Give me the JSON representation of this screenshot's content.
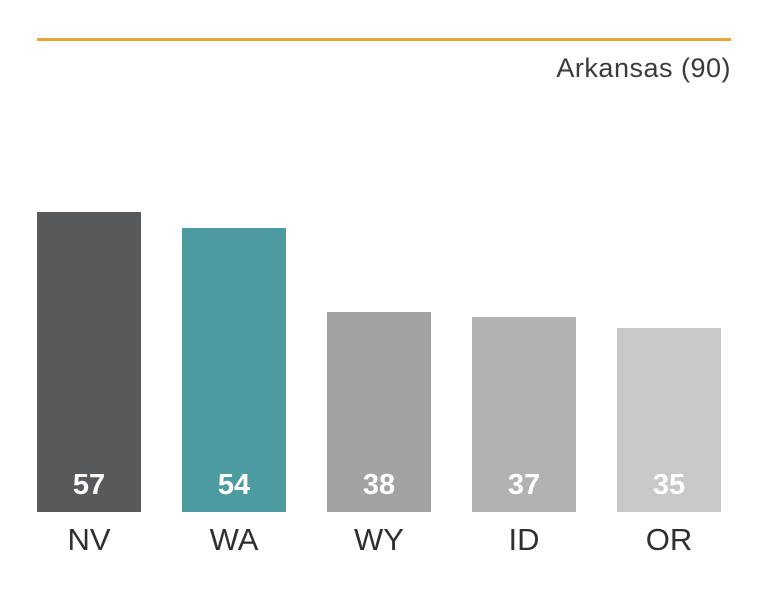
{
  "header": {
    "title": "Arkansas (90)"
  },
  "chart_data": {
    "type": "bar",
    "title": "Arkansas (90)",
    "reference_label": "Arkansas",
    "reference_value": 90,
    "categories": [
      "NV",
      "WA",
      "WY",
      "ID",
      "OR"
    ],
    "values": [
      57,
      54,
      38,
      37,
      35
    ],
    "bar_colors": [
      "#58595b",
      "#4b9ba1",
      "#a2a2a2",
      "#b2b2b2",
      "#c8c8c8"
    ],
    "value_label_color": "#ffffff",
    "accent_line_color": "#e9a33c",
    "xlabel": "",
    "ylabel": "",
    "ylim": [
      0,
      57
    ],
    "grid": "off",
    "legend": "none",
    "value_labels_position": "inside-bottom",
    "category_labels_position": "below"
  }
}
